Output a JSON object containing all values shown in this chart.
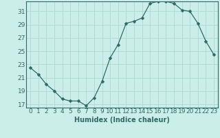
{
  "x": [
    0,
    1,
    2,
    3,
    4,
    5,
    6,
    7,
    8,
    9,
    10,
    11,
    12,
    13,
    14,
    15,
    16,
    17,
    18,
    19,
    20,
    21,
    22,
    23
  ],
  "y": [
    22.5,
    21.5,
    20.0,
    19.0,
    17.8,
    17.5,
    17.5,
    16.8,
    18.0,
    20.5,
    24.0,
    26.0,
    29.2,
    29.5,
    30.0,
    32.2,
    32.5,
    32.5,
    32.2,
    31.2,
    31.0,
    29.2,
    26.5,
    24.5
  ],
  "line_color": "#2e6b5e",
  "marker": "D",
  "marker_size": 2.5,
  "bg_color": "#cceee8",
  "grid_color": "#aad8d0",
  "xlabel": "Humidex (Indice chaleur)",
  "xlim": [
    -0.5,
    23.5
  ],
  "ylim": [
    16.5,
    32.5
  ],
  "yticks": [
    17,
    19,
    21,
    23,
    25,
    27,
    29,
    31
  ],
  "xticks": [
    0,
    1,
    2,
    3,
    4,
    5,
    6,
    7,
    8,
    9,
    10,
    11,
    12,
    13,
    14,
    15,
    16,
    17,
    18,
    19,
    20,
    21,
    22,
    23
  ],
  "tick_color": "#2e6b5e",
  "label_fontsize": 6.5,
  "axis_fontsize": 7
}
